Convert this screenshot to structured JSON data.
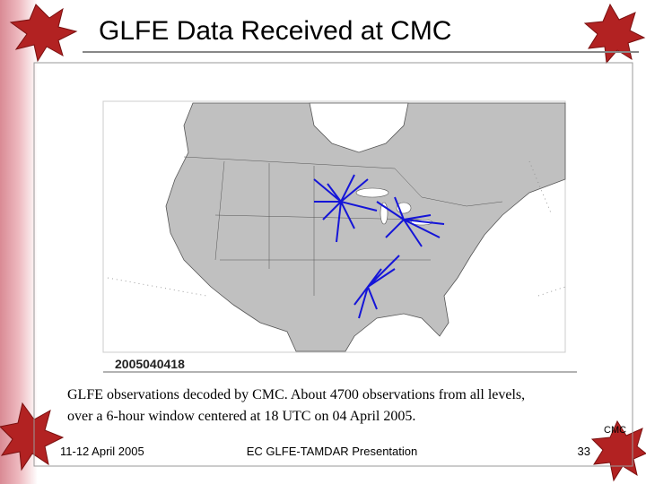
{
  "header": {
    "title": "GLFE Data Received at CMC"
  },
  "figure": {
    "map_label": "2005040418",
    "caption": [
      "GLFE observations decoded by CMC.  About 4700 observations from all levels,",
      "over a 6-hour window centered at 18 UTC on 04 April 2005."
    ],
    "source": "CMC"
  },
  "footer": {
    "date": "11-12 April 2005",
    "presentation": "EC GLFE-TAMDAR Presentation",
    "page": "33"
  }
}
